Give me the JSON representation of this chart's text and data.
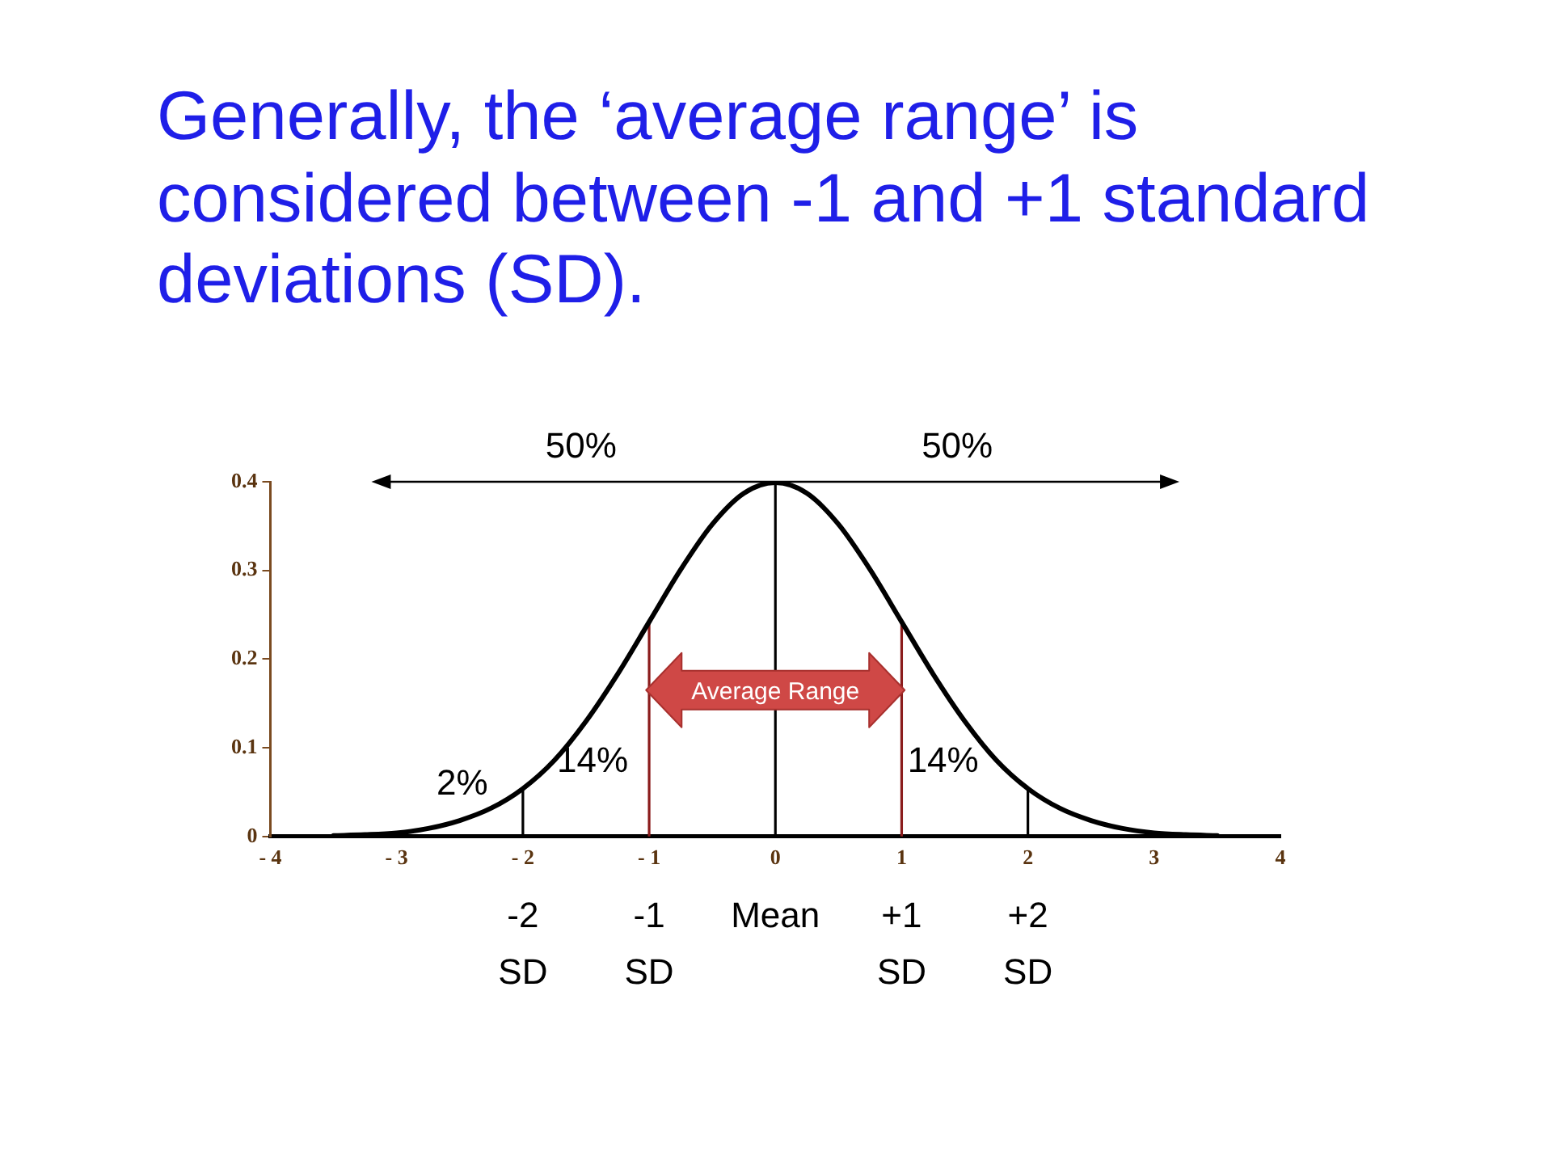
{
  "chart_data": {
    "type": "line",
    "title": "Generally, the ‘average range’ is considered between -1 and +1 standard deviations (SD).",
    "x": [
      -3.5,
      -3.25,
      -3,
      -2.75,
      -2.5,
      -2.25,
      -2,
      -1.75,
      -1.5,
      -1.25,
      -1,
      -0.75,
      -0.5,
      -0.25,
      0,
      0.25,
      0.5,
      0.75,
      1,
      1.25,
      1.5,
      1.75,
      2,
      2.25,
      2.5,
      2.75,
      3,
      3.25,
      3.5
    ],
    "values": [
      0.001,
      0.002,
      0.004,
      0.009,
      0.018,
      0.032,
      0.054,
      0.086,
      0.13,
      0.183,
      0.242,
      0.301,
      0.352,
      0.387,
      0.399,
      0.387,
      0.352,
      0.301,
      0.242,
      0.183,
      0.13,
      0.086,
      0.054,
      0.032,
      0.018,
      0.009,
      0.004,
      0.002,
      0.001
    ],
    "color": "#000000",
    "xlim": [
      -4,
      4
    ],
    "xticks": [
      {
        "value": -4,
        "label": "- 4"
      },
      {
        "value": -3,
        "label": "- 3"
      },
      {
        "value": -2,
        "label": "- 2"
      },
      {
        "value": -1,
        "label": "- 1"
      },
      0,
      1,
      2,
      3,
      4
    ],
    "ylim": [
      0,
      0.4
    ],
    "yticks": [
      0,
      0.1,
      0.2,
      0.3,
      0.4
    ],
    "grid": false,
    "legend": false,
    "marker": "none",
    "line_style": "solid",
    "ref_lines": [
      {
        "axis": "x",
        "value": -2,
        "label": "-2 SD",
        "color": "#000000"
      },
      {
        "axis": "x",
        "value": -1,
        "label": "-1 SD",
        "color": "#8b1c1c"
      },
      {
        "axis": "x",
        "value": 0,
        "label": "Mean",
        "color": "#000000"
      },
      {
        "axis": "x",
        "value": 1,
        "label": "+1 SD",
        "color": "#8b1c1c"
      },
      {
        "axis": "x",
        "value": 2,
        "label": "+2 SD",
        "color": "#000000"
      }
    ],
    "annotations": [
      "50%",
      "50%",
      "14%",
      "14%",
      "2%",
      {
        "text": "Average Range",
        "x": 0,
        "y": 0.165
      }
    ]
  }
}
